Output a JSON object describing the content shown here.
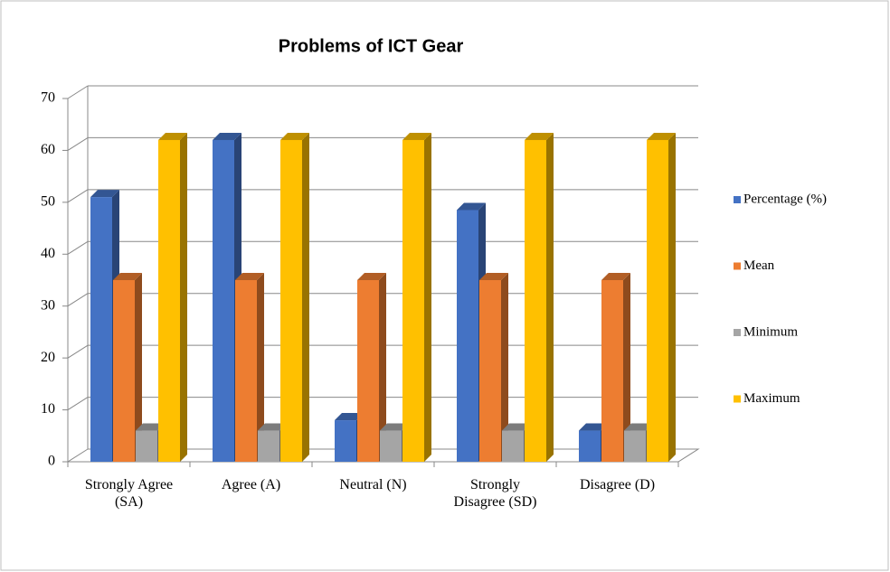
{
  "chart_data": {
    "type": "bar3d",
    "title": "Problems of ICT Gear",
    "categories": [
      "Strongly Agree (SA)",
      "Agree (A)",
      "Neutral (N)",
      "Strongly Disagree (SD)",
      "Disagree (D)"
    ],
    "series": [
      {
        "name": "Percentage (%)",
        "color": "#4472c4",
        "values": [
          51,
          62,
          8,
          48.5,
          6
        ]
      },
      {
        "name": "Mean",
        "color": "#ed7d31",
        "values": [
          35,
          35,
          35,
          35,
          35
        ]
      },
      {
        "name": "Minimum",
        "color": "#a5a5a5",
        "values": [
          6,
          6,
          6,
          6,
          6
        ]
      },
      {
        "name": "Maximum",
        "color": "#ffc000",
        "values": [
          62,
          62,
          62,
          62,
          62
        ]
      }
    ],
    "ylim": [
      0,
      70
    ],
    "yticks": [
      0,
      10,
      20,
      30,
      40,
      50,
      60,
      70
    ],
    "grid": true,
    "legend": "right"
  }
}
